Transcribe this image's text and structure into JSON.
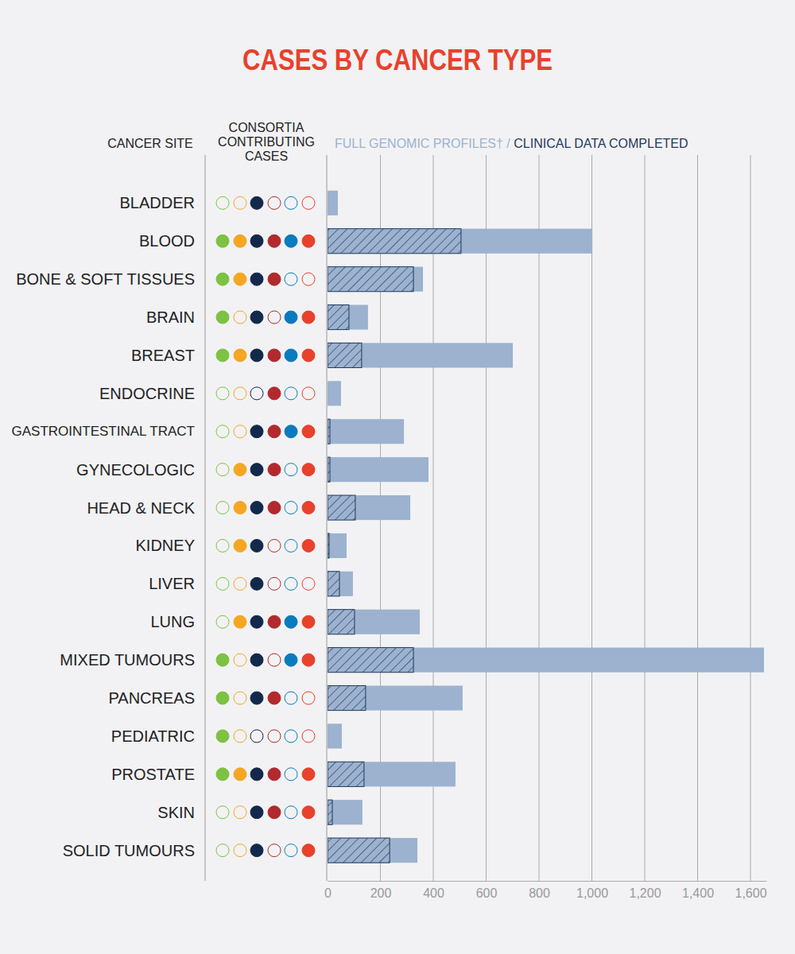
{
  "chart_data": {
    "type": "bar",
    "orientation": "horizontal",
    "title": "CASES BY CANCER TYPE",
    "column_headers": {
      "site": "CANCER SITE",
      "consortia": [
        "CONSORTIA",
        "CONTRIBUTING",
        "CASES"
      ]
    },
    "legend_separator": " / ",
    "categories": [
      "BLADDER",
      "BLOOD",
      "BONE & SOFT TISSUES",
      "BRAIN",
      "BREAST",
      "ENDOCRINE",
      "GASTROINTESTINAL TRACT",
      "GYNECOLOGIC",
      "HEAD & NECK",
      "KIDNEY",
      "LIVER",
      "LUNG",
      "MIXED TUMOURS",
      "PANCREAS",
      "PEDIATRIC",
      "PROSTATE",
      "SKIN",
      "SOLID TUMOURS"
    ],
    "series": [
      {
        "name": "FULL GENOMIC PROFILES†",
        "color": "#9cb2cf",
        "values": [
          39,
          1002,
          361,
          153,
          701,
          51,
          289,
          382,
          313,
          72,
          96,
          349,
          1651,
          511,
          54,
          484,
          132,
          340
        ]
      },
      {
        "name": "CLINICAL DATA COMPLETED",
        "color": "#1f3a5c",
        "values": [
          0,
          505,
          325,
          81,
          129,
          0,
          9,
          9,
          105,
          6,
          45,
          102,
          325,
          144,
          0,
          138,
          18,
          235
        ]
      }
    ],
    "consortia": {
      "colors": [
        "#7dc242",
        "#f5a623",
        "#13294b",
        "#b22a2e",
        "#0a7bbf",
        "#e8412c"
      ],
      "contributing": [
        [
          0,
          0,
          1,
          0,
          0,
          0
        ],
        [
          1,
          1,
          1,
          1,
          1,
          1
        ],
        [
          1,
          1,
          1,
          1,
          0,
          0
        ],
        [
          1,
          0,
          1,
          0,
          1,
          1
        ],
        [
          1,
          1,
          1,
          1,
          1,
          1
        ],
        [
          0,
          0,
          0,
          1,
          0,
          0
        ],
        [
          0,
          0,
          1,
          1,
          1,
          1
        ],
        [
          0,
          1,
          1,
          1,
          0,
          1
        ],
        [
          0,
          1,
          1,
          1,
          0,
          1
        ],
        [
          0,
          1,
          1,
          0,
          0,
          1
        ],
        [
          0,
          0,
          1,
          0,
          0,
          0
        ],
        [
          0,
          1,
          1,
          1,
          1,
          1
        ],
        [
          1,
          0,
          1,
          0,
          1,
          1
        ],
        [
          1,
          0,
          1,
          1,
          0,
          0
        ],
        [
          1,
          0,
          0,
          0,
          0,
          0
        ],
        [
          1,
          1,
          1,
          1,
          0,
          1
        ],
        [
          0,
          0,
          1,
          1,
          0,
          1
        ],
        [
          0,
          0,
          1,
          0,
          0,
          1
        ]
      ]
    },
    "xlim": [
      0,
      1660
    ],
    "xticks": [
      0,
      200,
      400,
      600,
      800,
      {
        "value": 1000,
        "label": "1,000"
      },
      {
        "value": 1200,
        "label": "1,200"
      },
      {
        "value": 1400,
        "label": "1,400"
      },
      {
        "value": 1600,
        "label": "1,600"
      }
    ],
    "grid": true
  }
}
